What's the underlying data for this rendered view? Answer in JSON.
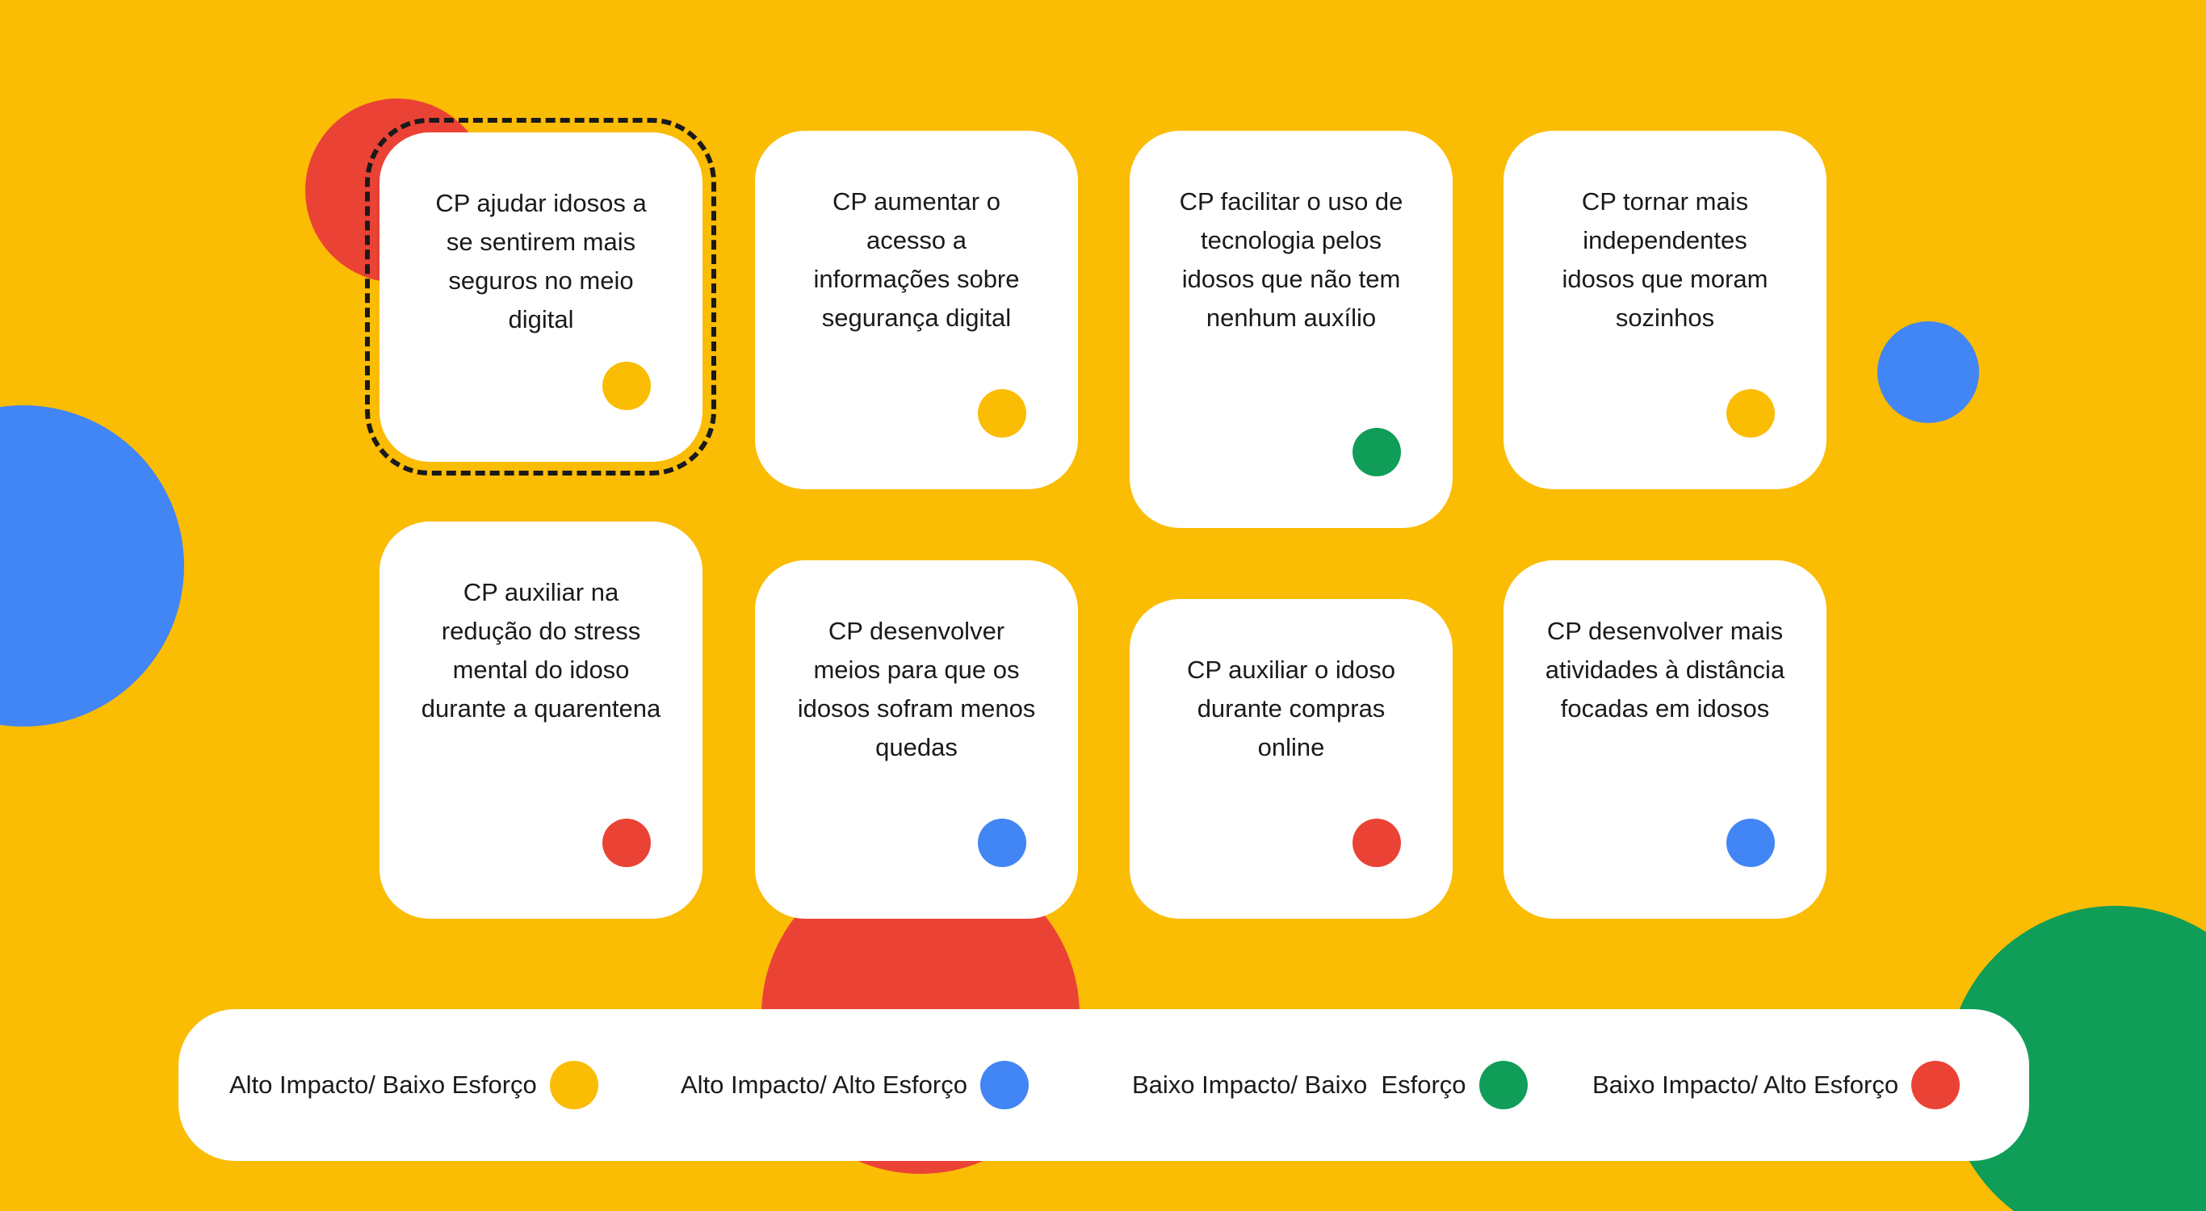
{
  "colors": {
    "background": "#FBBC04",
    "card": "#FFFFFF",
    "yellow": "#FBBC04",
    "blue": "#4285F4",
    "green": "#0F9D58",
    "red": "#EA4335",
    "text": "#1A1A1A"
  },
  "cards": [
    {
      "text": "CP ajudar idosos a se sentirem mais seguros no meio digital",
      "dot_color": "yellow",
      "selected": true
    },
    {
      "text": "CP aumentar o acesso a informações sobre segurança digital",
      "dot_color": "yellow",
      "selected": false
    },
    {
      "text": "CP facilitar o uso de tecnologia pelos idosos que não tem nenhum auxílio",
      "dot_color": "green",
      "selected": false
    },
    {
      "text": "CP tornar mais independentes idosos que moram sozinhos",
      "dot_color": "yellow",
      "selected": false
    },
    {
      "text": "CP auxiliar na redução do stress mental do idoso durante a quarentena",
      "dot_color": "red",
      "selected": false
    },
    {
      "text": "CP desenvolver meios para que os idosos sofram menos quedas",
      "dot_color": "blue",
      "selected": false
    },
    {
      "text": "CP auxiliar o idoso durante compras online",
      "dot_color": "red",
      "selected": false
    },
    {
      "text": "CP desenvolver mais atividades à distância focadas em idosos",
      "dot_color": "blue",
      "selected": false
    }
  ],
  "legend": [
    {
      "label": "Alto Impacto/ Baixo Esforço",
      "dot_color": "yellow"
    },
    {
      "label": "Alto Impacto/ Alto Esforço",
      "dot_color": "blue"
    },
    {
      "label": "Baixo Impacto/ Baixo  Esforço",
      "dot_color": "green"
    },
    {
      "label": "Baixo Impacto/ Alto Esforço",
      "dot_color": "red"
    }
  ]
}
